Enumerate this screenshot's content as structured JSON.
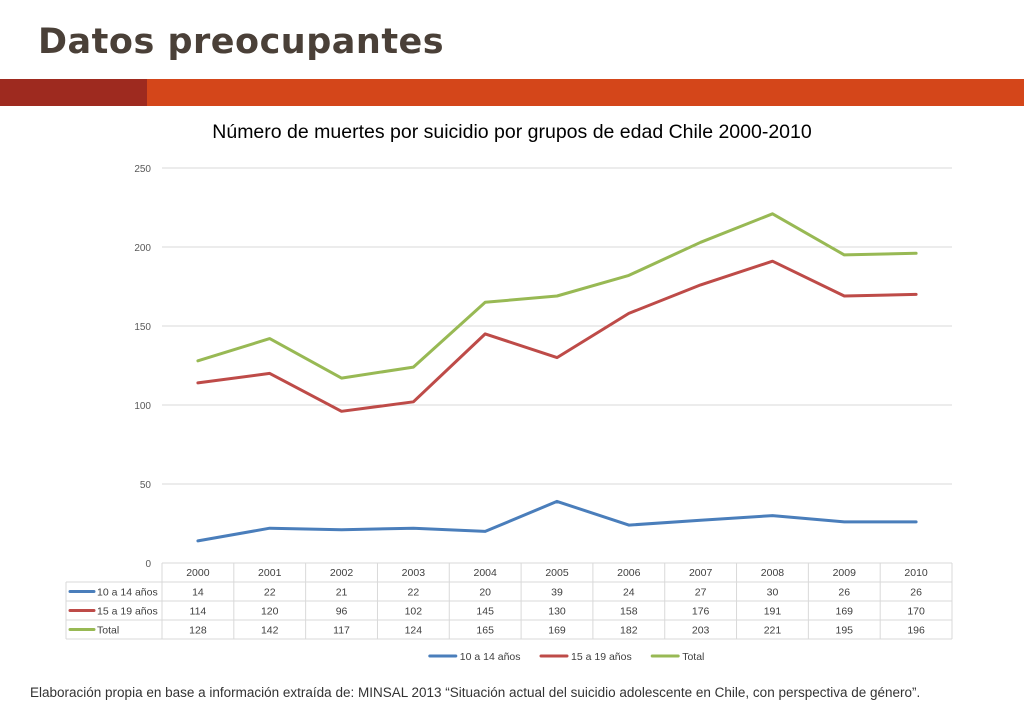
{
  "slide": {
    "title": "Datos preocupantes",
    "accent_dark": "#9e2a1f",
    "accent_orange": "#d4461a"
  },
  "chart_data": {
    "type": "line",
    "title": "Número de muertes por suicidio por grupos de edad Chile 2000-2010",
    "categories": [
      "2000",
      "2001",
      "2002",
      "2003",
      "2004",
      "2005",
      "2006",
      "2007",
      "2008",
      "2009",
      "2010"
    ],
    "ylim": [
      0,
      250
    ],
    "yticks": [
      0,
      50,
      100,
      150,
      200,
      250
    ],
    "grid": true,
    "legend_position": "bottom",
    "data_table": true,
    "series": [
      {
        "name": "10 a 14 años",
        "color": "#4a7ebb",
        "values": [
          14,
          22,
          21,
          22,
          20,
          39,
          24,
          27,
          30,
          26,
          26
        ]
      },
      {
        "name": "15 a 19 años",
        "color": "#be4b48",
        "values": [
          114,
          120,
          96,
          102,
          145,
          130,
          158,
          176,
          191,
          169,
          170
        ]
      },
      {
        "name": "Total",
        "color": "#98b954",
        "values": [
          128,
          142,
          117,
          124,
          165,
          169,
          182,
          203,
          221,
          195,
          196
        ]
      }
    ]
  },
  "footer": {
    "source": "Elaboración propia en base a información extraída de: MINSAL 2013 “Situación actual del suicidio adolescente en Chile, con perspectiva de género”."
  }
}
